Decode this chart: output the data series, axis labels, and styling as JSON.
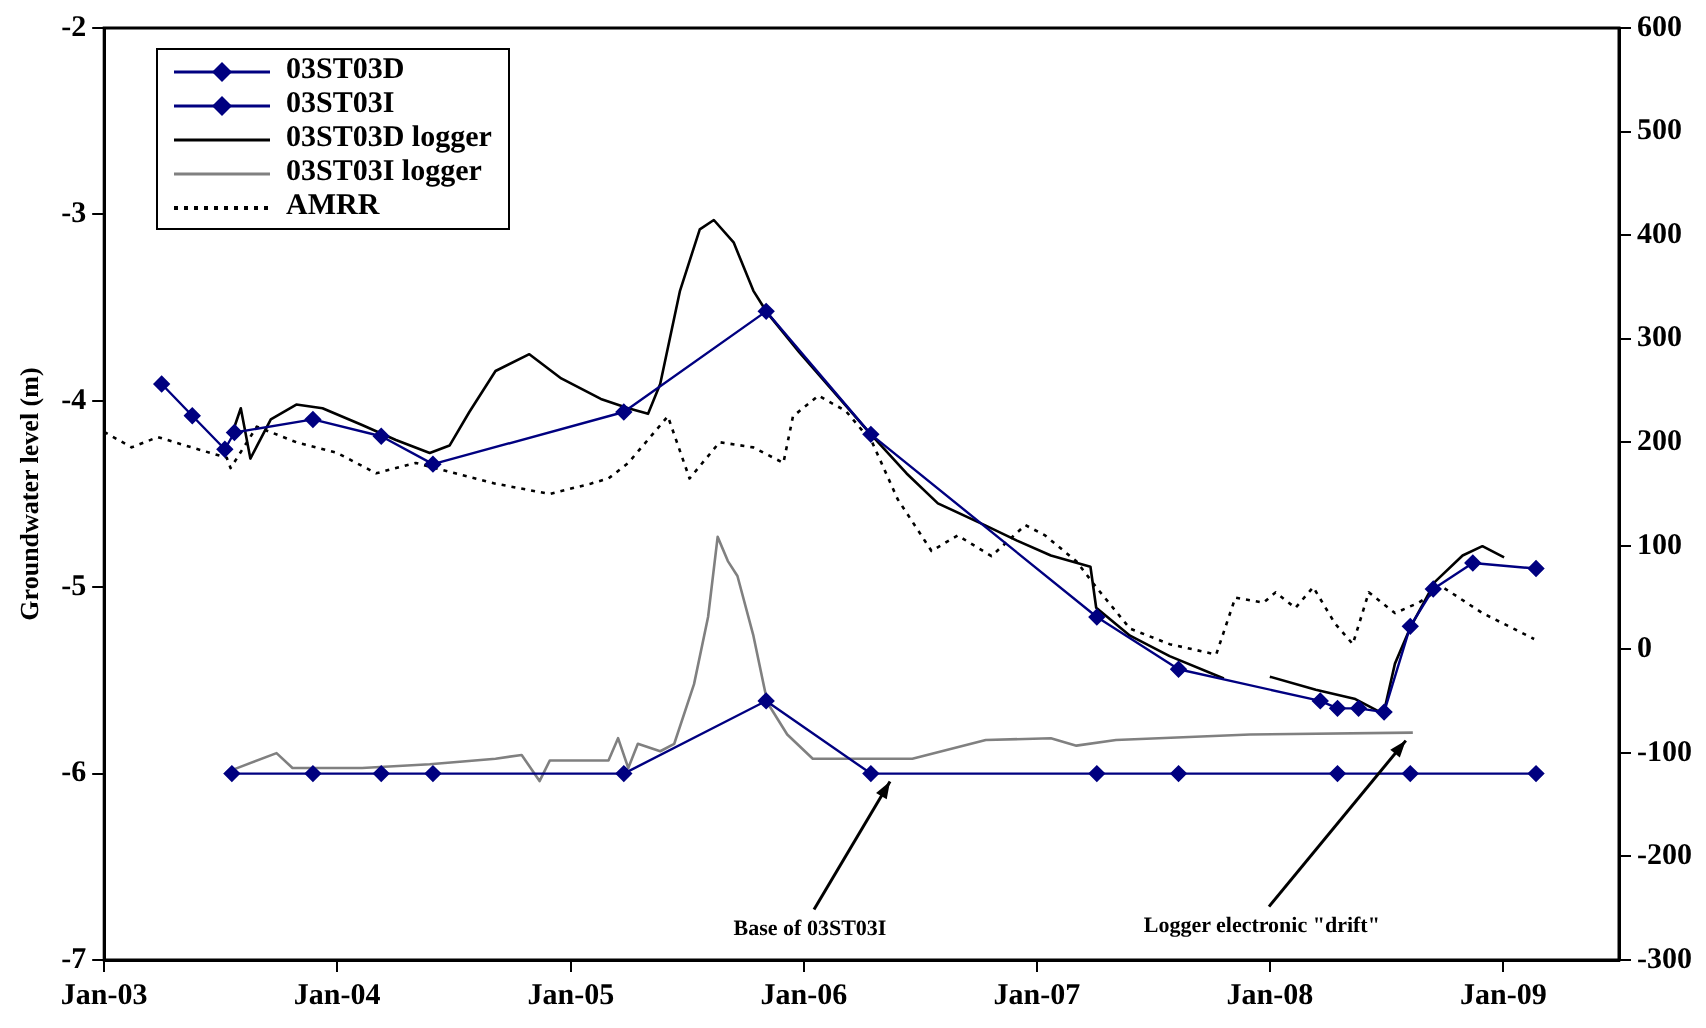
{
  "chart_data": {
    "type": "line",
    "ylabel": "Groundwater level (m)",
    "xlim": [
      "2003-01-01",
      "2009-07-01"
    ],
    "xticks": [
      {
        "value": "2003-01-01",
        "label": "Jan-03"
      },
      {
        "value": "2004-01-01",
        "label": "Jan-04"
      },
      {
        "value": "2005-01-01",
        "label": "Jan-05"
      },
      {
        "value": "2006-01-01",
        "label": "Jan-06"
      },
      {
        "value": "2007-01-01",
        "label": "Jan-07"
      },
      {
        "value": "2008-01-01",
        "label": "Jan-08"
      },
      {
        "value": "2009-01-01",
        "label": "Jan-09"
      }
    ],
    "ylim": [
      -7,
      -2
    ],
    "yticks": [
      -7,
      -6,
      -5,
      -4,
      -3,
      -2
    ],
    "y2lim": [
      -300,
      600
    ],
    "y2ticks": [
      -300,
      -200,
      -100,
      0,
      100,
      200,
      300,
      400,
      500,
      600
    ],
    "grid": false,
    "legend": "top left",
    "series": [
      {
        "name": "03ST03D",
        "color": "#000080",
        "marker": "diamond",
        "x": [
          "2003-04-01",
          "2003-05-19",
          "2003-07-09",
          "2003-07-24",
          "2003-11-24",
          "2004-03-10",
          "2004-05-30",
          "2005-03-25",
          "2005-11-03",
          "2006-04-16",
          "2007-04-05",
          "2007-08-11",
          "2008-03-20",
          "2008-04-16",
          "2008-05-19",
          "2008-06-28",
          "2008-08-08",
          "2008-09-13",
          "2008-11-14",
          "2009-02-21"
        ],
        "values": [
          -3.91,
          -4.08,
          -4.26,
          -4.17,
          -4.1,
          -4.19,
          -4.34,
          -4.06,
          -3.52,
          -4.18,
          -5.16,
          -5.44,
          -5.61,
          -5.65,
          -5.65,
          -5.67,
          -5.21,
          -5.01,
          -4.87,
          -4.9
        ]
      },
      {
        "name": "03ST03I",
        "color": "#000080",
        "marker": "diamond",
        "x": [
          "2003-07-20",
          "2003-11-24",
          "2004-03-10",
          "2004-05-30",
          "2005-03-25",
          "2005-11-03",
          "2006-04-16",
          "2007-04-05",
          "2007-08-11",
          "2008-04-16",
          "2008-08-08",
          "2009-02-21"
        ],
        "values": [
          -6.0,
          -6.0,
          -6.0,
          -6.0,
          -6.0,
          -5.61,
          -6.0,
          -6.0,
          -6.0,
          -6.0,
          -6.0,
          -6.0
        ]
      },
      {
        "name": "03ST03D logger",
        "color": "#000000",
        "marker": "none",
        "x": [
          "2003-07-21",
          "2003-08-03",
          "2003-08-18",
          "2003-09-19",
          "2003-10-29",
          "2003-12-09",
          "2004-02-09",
          "2004-04-02",
          "2004-05-25",
          "2004-06-25",
          "2004-07-26",
          "2004-09-05",
          "2004-10-28",
          "2004-12-17",
          "2005-02-17",
          "2005-04-01",
          "2005-05-02",
          "2005-05-21",
          "2005-06-21",
          "2005-07-22",
          "2005-08-13",
          "2005-09-13",
          "2005-10-14",
          "2005-11-05",
          "2005-12-25",
          "2006-04-16",
          "2006-06-11",
          "2006-07-30",
          "2006-10-13",
          "2006-12-01",
          "2007-01-23",
          "2007-03-26",
          "2007-04-04",
          "2007-05-27",
          "2007-07-28",
          "2007-10-21",
          "2007-12-01",
          "2008-01-01",
          "2008-03-13",
          "2008-05-14",
          "2008-06-27",
          "2008-07-15",
          "2008-08-09",
          "2008-09-16",
          "2008-10-29",
          "2008-11-29",
          "2009-01-02"
        ],
        "values": [
          -4.17,
          -4.04,
          -4.31,
          -4.1,
          -4.02,
          -4.04,
          -4.13,
          -4.21,
          -4.28,
          -4.24,
          -4.06,
          -3.84,
          -3.75,
          -3.88,
          -3.99,
          -4.04,
          -4.07,
          -3.91,
          -3.41,
          -3.08,
          -3.03,
          -3.15,
          -3.41,
          -3.53,
          -3.74,
          -4.18,
          -4.39,
          -4.55,
          -4.67,
          -4.75,
          -4.83,
          -4.89,
          -5.11,
          -5.26,
          -5.37,
          -5.49,
          null,
          -5.48,
          -5.55,
          -5.6,
          -5.68,
          -5.41,
          -5.21,
          -4.97,
          -4.83,
          -4.78,
          -4.84
        ]
      },
      {
        "name": "03ST03I logger",
        "color": "#808080",
        "marker": "none",
        "x": [
          "2003-07-21",
          "2003-09-28",
          "2003-10-23",
          "2004-02-09",
          "2004-05-25",
          "2004-09-05",
          "2004-10-16",
          "2004-11-13",
          "2004-11-29",
          "2005-03-01",
          "2005-03-16",
          "2005-04-01",
          "2005-04-16",
          "2005-05-21",
          "2005-06-12",
          "2005-07-13",
          "2005-08-04",
          "2005-08-19",
          "2005-09-04",
          "2005-09-19",
          "2005-10-14",
          "2005-11-05",
          "2005-12-06",
          "2006-01-15",
          "2006-06-20",
          "2006-10-13",
          "2007-01-23",
          "2007-03-04",
          "2007-05-05",
          "2007-12-01",
          "2008-08-12"
        ],
        "values": [
          -5.98,
          -5.89,
          -5.97,
          -5.97,
          -5.95,
          -5.92,
          -5.9,
          -6.04,
          -5.93,
          -5.93,
          -5.81,
          -5.97,
          -5.84,
          -5.88,
          -5.84,
          -5.52,
          -5.16,
          -4.73,
          -4.86,
          -4.94,
          -5.26,
          -5.62,
          -5.79,
          -5.92,
          -5.92,
          -5.82,
          -5.81,
          -5.85,
          -5.82,
          -5.79,
          -5.78
        ]
      },
      {
        "name": "AMRR",
        "color": "#000000",
        "marker": "none",
        "line_style": "dotted",
        "axis": "y2",
        "x": [
          "2003-01-01",
          "2003-02-13",
          "2003-03-26",
          "2003-05-18",
          "2003-07-12",
          "2003-07-18",
          "2003-08-28",
          "2003-10-29",
          "2003-12-31",
          "2004-03-02",
          "2004-05-03",
          "2004-07-04",
          "2004-09-05",
          "2004-11-29",
          "2005-02-01",
          "2005-03-01",
          "2005-04-01",
          "2005-06-02",
          "2005-07-06",
          "2005-08-22",
          "2005-10-14",
          "2005-11-30",
          "2005-12-15",
          "2006-01-24",
          "2006-03-08",
          "2006-04-18",
          "2006-05-28",
          "2006-07-20",
          "2006-08-30",
          "2006-10-22",
          "2006-12-14",
          "2007-01-14",
          "2007-03-04",
          "2007-04-04",
          "2007-05-27",
          "2007-07-28",
          "2007-10-09",
          "2007-11-08",
          "2007-12-22",
          "2008-01-10",
          "2008-02-10",
          "2008-03-09",
          "2008-04-12",
          "2008-05-10",
          "2008-06-04",
          "2008-07-15",
          "2008-08-21",
          "2008-09-28",
          "2008-11-29",
          "2009-02-18"
        ],
        "values": [
          210,
          195,
          205,
          195,
          185,
          175,
          215,
          200,
          190,
          170,
          180,
          170,
          160,
          150,
          160,
          165,
          180,
          225,
          165,
          200,
          195,
          180,
          225,
          245,
          230,
          200,
          145,
          95,
          110,
          90,
          120,
          110,
          85,
          60,
          20,
          5,
          -5,
          50,
          45,
          55,
          40,
          60,
          25,
          5,
          55,
          35,
          45,
          60,
          35,
          10
        ]
      }
    ],
    "annotations": [
      {
        "text": "Base of 03ST03I",
        "x": "2006-05-16",
        "y": -6.0
      },
      {
        "text": "Logger electronic \"drift\"",
        "x": "2008-08-01",
        "y": -5.78
      }
    ]
  }
}
